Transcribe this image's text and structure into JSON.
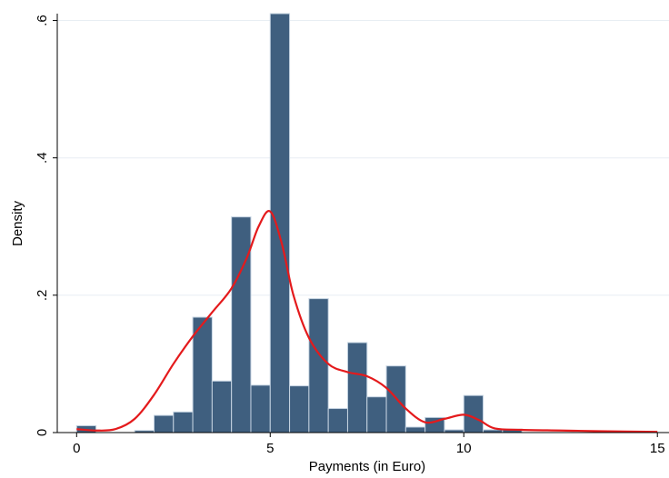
{
  "chart_data": {
    "type": "bar",
    "xlabel": "Payments (in Euro)",
    "ylabel": "Density",
    "xlim": [
      -0.5,
      15.3
    ],
    "ylim": [
      0,
      0.61
    ],
    "x_ticks": [
      {
        "value": 0,
        "label": "0"
      },
      {
        "value": 5,
        "label": "5"
      },
      {
        "value": 10,
        "label": "10"
      },
      {
        "value": 15,
        "label": "15"
      }
    ],
    "y_ticks": [
      {
        "value": 0,
        "label": "0"
      },
      {
        "value": 0.2,
        "label": ".2"
      },
      {
        "value": 0.4,
        "label": ".4"
      },
      {
        "value": 0.6,
        "label": ".6"
      }
    ],
    "grid": true,
    "bin_width": 0.5,
    "bins": [
      {
        "x": 0.0,
        "density": 0.01
      },
      {
        "x": 0.5,
        "density": 0.0
      },
      {
        "x": 1.0,
        "density": 0.0
      },
      {
        "x": 1.5,
        "density": 0.003
      },
      {
        "x": 2.0,
        "density": 0.025
      },
      {
        "x": 2.5,
        "density": 0.03
      },
      {
        "x": 3.0,
        "density": 0.168
      },
      {
        "x": 3.5,
        "density": 0.075
      },
      {
        "x": 4.0,
        "density": 0.314
      },
      {
        "x": 4.5,
        "density": 0.069
      },
      {
        "x": 5.0,
        "density": 0.61
      },
      {
        "x": 5.5,
        "density": 0.068
      },
      {
        "x": 6.0,
        "density": 0.195
      },
      {
        "x": 6.5,
        "density": 0.035
      },
      {
        "x": 7.0,
        "density": 0.131
      },
      {
        "x": 7.5,
        "density": 0.052
      },
      {
        "x": 8.0,
        "density": 0.097
      },
      {
        "x": 8.5,
        "density": 0.008
      },
      {
        "x": 9.0,
        "density": 0.022
      },
      {
        "x": 9.5,
        "density": 0.004
      },
      {
        "x": 10.0,
        "density": 0.054
      },
      {
        "x": 10.5,
        "density": 0.004
      },
      {
        "x": 11.0,
        "density": 0.005
      },
      {
        "x": 11.5,
        "density": 0.0
      }
    ],
    "density_curve": [
      [
        0.0,
        0.005
      ],
      [
        0.5,
        0.003
      ],
      [
        1.0,
        0.005
      ],
      [
        1.5,
        0.02
      ],
      [
        2.0,
        0.055
      ],
      [
        2.5,
        0.1
      ],
      [
        3.0,
        0.14
      ],
      [
        3.5,
        0.175
      ],
      [
        4.0,
        0.21
      ],
      [
        4.4,
        0.255
      ],
      [
        4.7,
        0.3
      ],
      [
        5.0,
        0.322
      ],
      [
        5.3,
        0.275
      ],
      [
        5.6,
        0.2
      ],
      [
        6.0,
        0.138
      ],
      [
        6.5,
        0.1
      ],
      [
        7.0,
        0.088
      ],
      [
        7.5,
        0.082
      ],
      [
        8.0,
        0.065
      ],
      [
        8.5,
        0.035
      ],
      [
        9.0,
        0.015
      ],
      [
        9.5,
        0.02
      ],
      [
        10.0,
        0.026
      ],
      [
        10.4,
        0.018
      ],
      [
        10.8,
        0.006
      ],
      [
        11.5,
        0.004
      ],
      [
        12.5,
        0.003
      ],
      [
        13.5,
        0.002
      ],
      [
        15.0,
        0.001
      ]
    ],
    "colors": {
      "bar_fill": "#3f5f7f",
      "bar_stroke": "#c6d4e2",
      "curve": "#e41a1c",
      "grid": "#e8eef3",
      "axis": "#000000"
    }
  }
}
